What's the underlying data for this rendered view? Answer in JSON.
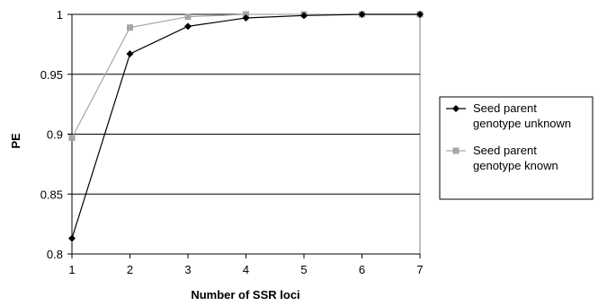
{
  "chart_data": {
    "type": "line",
    "title": "",
    "xlabel": "Number of SSR loci",
    "ylabel": "PE",
    "x": [
      1,
      2,
      3,
      4,
      5,
      6,
      7
    ],
    "xlim": [
      1,
      7
    ],
    "ylim": [
      0.8,
      1
    ],
    "x_ticks": [
      "1",
      "2",
      "3",
      "4",
      "5",
      "6",
      "7"
    ],
    "y_ticks": [
      "0.8",
      "0.85",
      "0.9",
      "0.95",
      "1"
    ],
    "y_tick_values": [
      0.8,
      0.85,
      0.9,
      0.95,
      1
    ],
    "grid": "horizontal",
    "legend_position": "right",
    "series": [
      {
        "name": "Seed parent genotype unknown",
        "legend_lines": [
          "Seed parent",
          "genotype unknown"
        ],
        "marker": "diamond",
        "color": "#000000",
        "values": [
          0.813,
          0.967,
          0.99,
          0.997,
          0.999,
          1.0,
          1.0
        ]
      },
      {
        "name": "Seed parent genotype known",
        "legend_lines": [
          "Seed parent",
          "genotype known"
        ],
        "marker": "square",
        "color": "#a6a6a6",
        "values": [
          0.897,
          0.989,
          0.998,
          1.0,
          1.0,
          1.0,
          1.0
        ]
      }
    ]
  }
}
